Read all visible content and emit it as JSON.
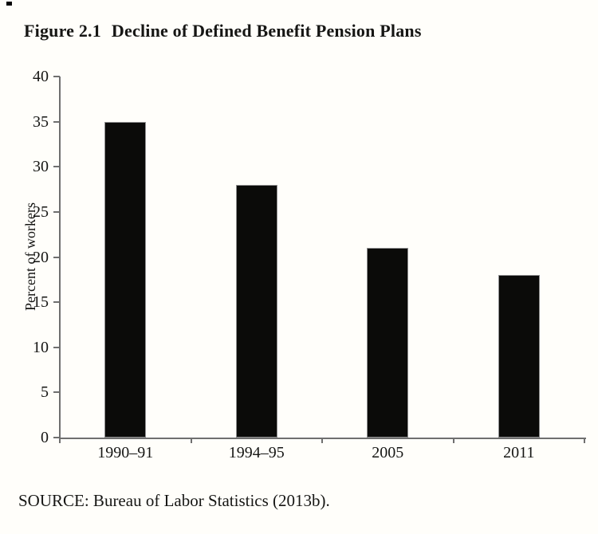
{
  "figure": {
    "label": "Figure 2.1",
    "title": "Decline of Defined Benefit Pension Plans"
  },
  "source_note": "SOURCE: Bureau of Labor Statistics (2013b).",
  "colors": {
    "bar": "#0b0b09",
    "axis": "#6f6f6f",
    "text": "#161614",
    "background": "#fffefa"
  },
  "chart_data": {
    "type": "bar",
    "categories": [
      "1990–91",
      "1994–95",
      "2005",
      "2011"
    ],
    "values": [
      35,
      28,
      21,
      18
    ],
    "title": "",
    "xlabel": "",
    "ylabel": "Percent of workers",
    "ylim": [
      0,
      40
    ],
    "ytick_step": 5,
    "yticks": [
      0,
      5,
      10,
      15,
      20,
      25,
      30,
      35,
      40
    ],
    "grid": false,
    "legend": false
  }
}
